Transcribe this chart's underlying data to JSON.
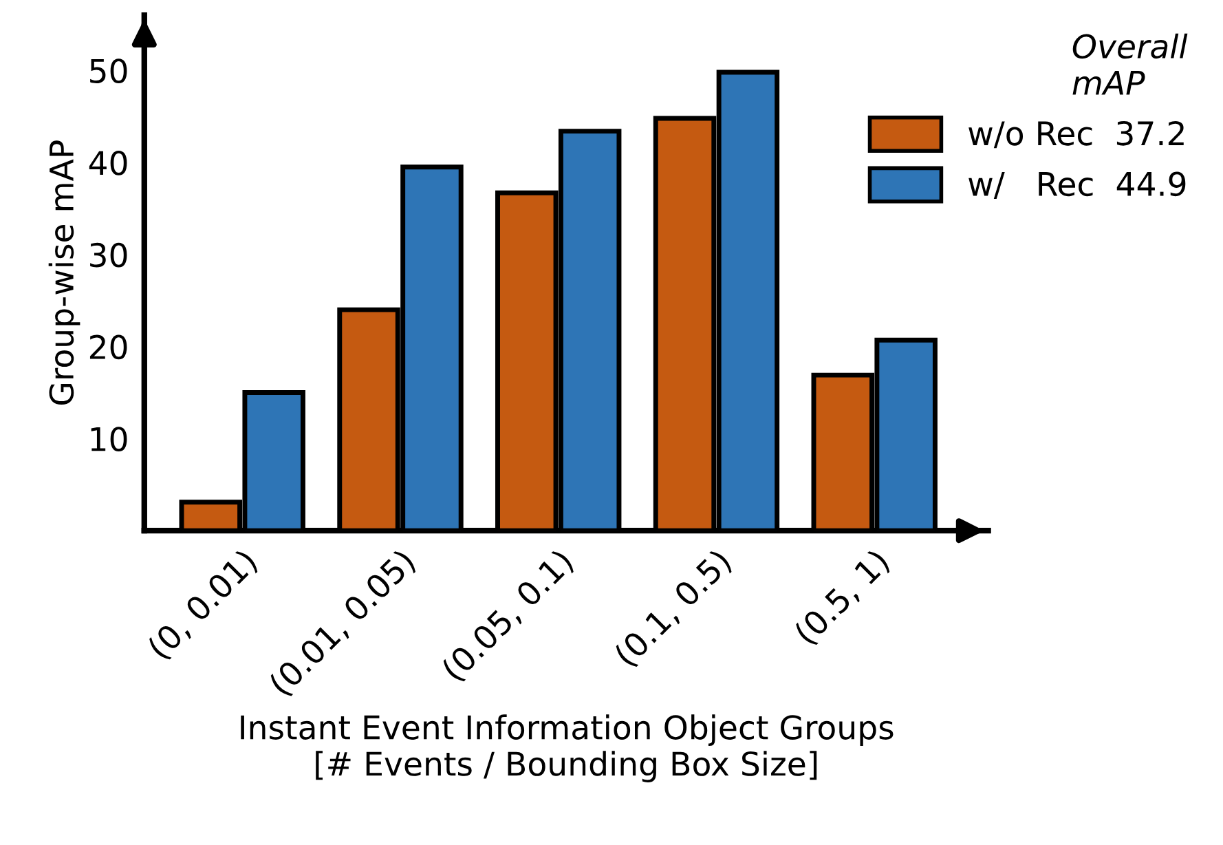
{
  "chart_data": {
    "type": "bar",
    "categories": [
      "(0, 0.01)",
      "(0.01, 0.05)",
      "(0.05, 0.1)",
      "(0.1, 0.5)",
      "(0.5, 1)"
    ],
    "series": [
      {
        "name": "w/o Rec  37.2",
        "color": "#c55a11",
        "values": [
          3.1,
          24.0,
          36.7,
          44.8,
          16.9
        ]
      },
      {
        "name": "w/   Rec  44.9",
        "color": "#2e75b6",
        "values": [
          15.0,
          39.5,
          43.4,
          49.8,
          20.7
        ]
      }
    ],
    "ylim": [
      0,
      56
    ],
    "yticks": [
      10,
      20,
      30,
      40,
      50
    ],
    "ylabel": "Group-wise mAP",
    "xlabel": "Instant Event Information Object Groups\n[# Events / Bounding Box Size]",
    "legend_title": "Overall\nmAP",
    "legend": "top right",
    "grid": false
  }
}
